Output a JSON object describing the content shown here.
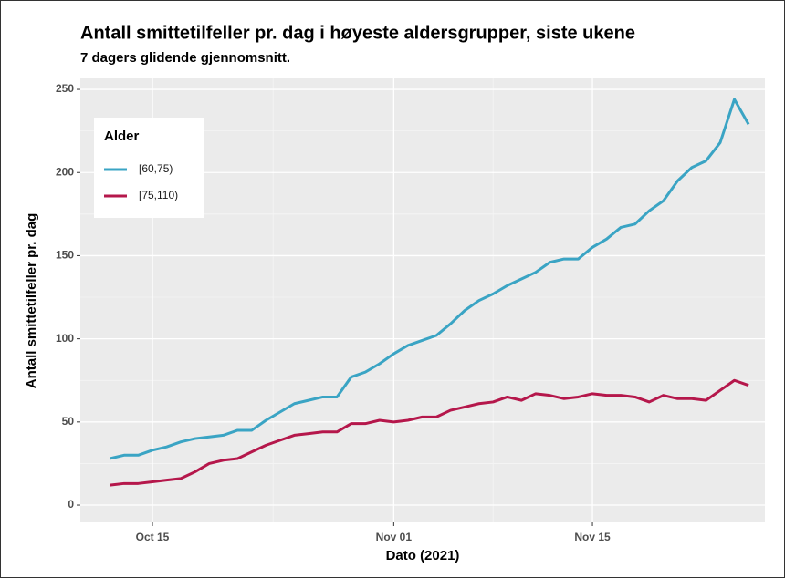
{
  "chart_data": {
    "type": "line",
    "title": "Antall smittetilfeller pr. dag i høyeste aldersgrupper, siste ukene",
    "subtitle": "7 dagers glidende gjennomsnitt.",
    "x_label": "Dato (2021)",
    "y_label": "Antall smittetilfeller pr. dag",
    "legend_title": "Alder",
    "legend_position": "top-left",
    "grid": true,
    "x": [
      "Oct 12",
      "Oct 13",
      "Oct 14",
      "Oct 15",
      "Oct 16",
      "Oct 17",
      "Oct 18",
      "Oct 19",
      "Oct 20",
      "Oct 21",
      "Oct 22",
      "Oct 23",
      "Oct 24",
      "Oct 25",
      "Oct 26",
      "Oct 27",
      "Oct 28",
      "Oct 29",
      "Oct 30",
      "Oct 31",
      "Nov 01",
      "Nov 02",
      "Nov 03",
      "Nov 04",
      "Nov 05",
      "Nov 06",
      "Nov 07",
      "Nov 08",
      "Nov 09",
      "Nov 10",
      "Nov 11",
      "Nov 12",
      "Nov 13",
      "Nov 14",
      "Nov 15",
      "Nov 16",
      "Nov 17",
      "Nov 18",
      "Nov 19",
      "Nov 20",
      "Nov 21",
      "Nov 22",
      "Nov 23",
      "Nov 24",
      "Nov 25",
      "Nov 26"
    ],
    "xticks": [
      "Oct 15",
      "Nov 01",
      "Nov 15"
    ],
    "ylim": [
      -10.4,
      256.6
    ],
    "yticks": [
      0,
      50,
      100,
      150,
      200,
      250
    ],
    "series": [
      {
        "name": "[60,75)",
        "color": "#3aa4c4",
        "values": [
          28,
          30,
          30,
          33,
          35,
          38,
          40,
          41,
          42,
          45,
          45,
          51,
          56,
          61,
          63,
          65,
          65,
          77,
          80,
          85,
          91,
          96,
          99,
          102,
          109,
          117,
          123,
          127,
          132,
          136,
          140,
          146,
          148,
          148,
          155,
          160,
          167,
          169,
          177,
          183,
          195,
          203,
          207,
          218,
          244,
          229
        ]
      },
      {
        "name": "[75,110)",
        "color": "#b5174b",
        "values": [
          12,
          13,
          13,
          14,
          15,
          16,
          20,
          25,
          27,
          28,
          32,
          36,
          39,
          42,
          43,
          44,
          44,
          49,
          49,
          51,
          50,
          51,
          53,
          53,
          57,
          59,
          61,
          62,
          65,
          63,
          67,
          66,
          64,
          65,
          67,
          66,
          66,
          65,
          62,
          66,
          64,
          64,
          63,
          69,
          75,
          72
        ]
      }
    ]
  }
}
